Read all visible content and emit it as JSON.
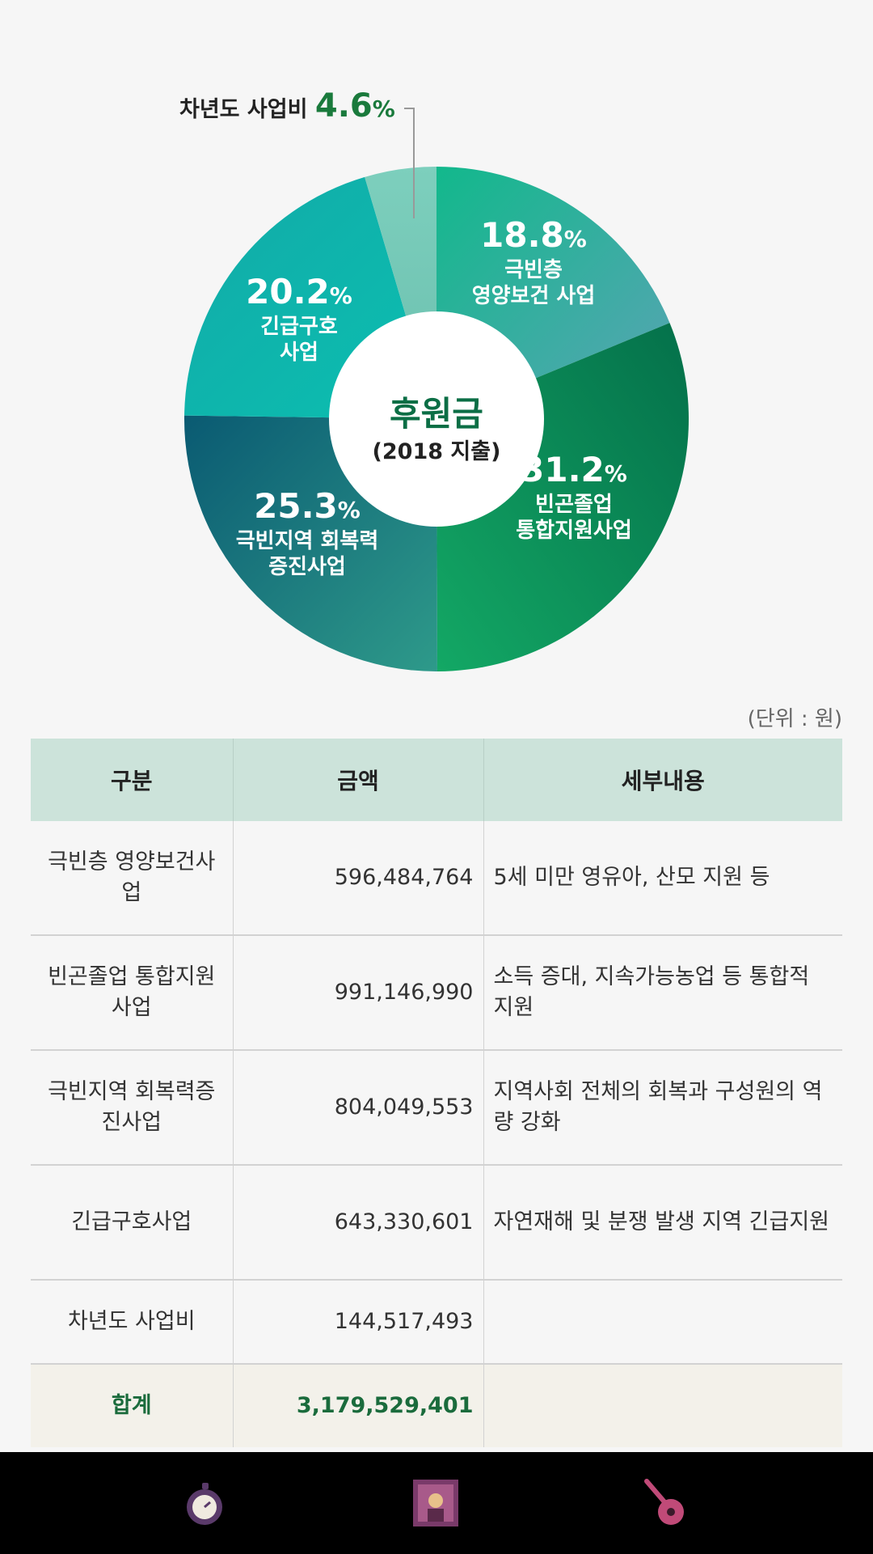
{
  "chart_data": {
    "type": "pie",
    "title": "후원금",
    "subtitle": "(2018 지출)",
    "slices": [
      {
        "label_lines": [
          "극빈층",
          "영양보건 사업"
        ],
        "value": 18.8,
        "color": "#2bb89a"
      },
      {
        "label_lines": [
          "빈곤졸업",
          "통합지원사업"
        ],
        "value": 31.2,
        "color": "#0b7a4a"
      },
      {
        "label_lines": [
          "극빈지역 회복력",
          "증진사업"
        ],
        "value": 25.3,
        "color": "#1f7f7a"
      },
      {
        "label_lines": [
          "긴급구호",
          "사업"
        ],
        "value": 20.2,
        "color": "#0fb0a6"
      },
      {
        "label_lines": [
          "차년도 사업비"
        ],
        "value": 4.6,
        "color": "#74c7b8"
      }
    ],
    "unit": "%"
  },
  "table": {
    "unit_note": "(단위 : 원)",
    "headers": [
      "구분",
      "금액",
      "세부내용"
    ],
    "rows": [
      {
        "category": "극빈층 영양보건사업",
        "amount": "596,484,764",
        "detail": "5세 미만 영유아, 산모 지원 등"
      },
      {
        "category": "빈곤졸업 통합지원사업",
        "amount": "991,146,990",
        "detail": "소득 증대, 지속가능농업 등 통합적 지원"
      },
      {
        "category": "극빈지역 회복력증진사업",
        "amount": "804,049,553",
        "detail": "지역사회 전체의 회복과 구성원의 역량 강화"
      },
      {
        "category": "긴급구호사업",
        "amount": "643,330,601",
        "detail": "자연재해 및 분쟁 발생 지역 긴급지원"
      },
      {
        "category": "차년도 사업비",
        "amount": "144,517,493",
        "detail": ""
      }
    ],
    "total": {
      "category": "합계",
      "amount": "3,179,529,401",
      "detail": ""
    }
  },
  "navbar": {
    "items": [
      {
        "name": "timer-icon",
        "color": "#7a4a7a"
      },
      {
        "name": "portrait-icon",
        "color": "#8a4a8a"
      },
      {
        "name": "guitar-icon",
        "color": "#c04a78"
      }
    ]
  }
}
